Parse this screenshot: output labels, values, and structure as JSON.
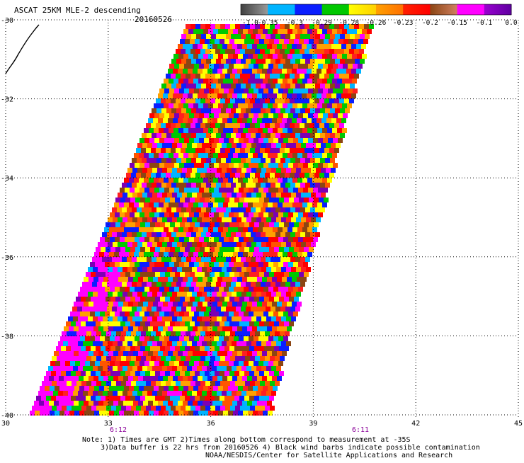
{
  "header": {
    "title": "ASCAT 25KM MLE-2 descending",
    "date": "20160526"
  },
  "colorbar": {
    "labels": [
      "-1.0",
      "-0.35",
      "-0.3",
      "-0.29",
      "-0.28",
      "-0.26",
      "-0.23",
      "-0.2",
      "-0.15",
      "-0.1",
      "0.0"
    ],
    "colors": [
      "#404040",
      "#8c8c8c",
      "#00b4ff",
      "#0a1eff",
      "#00c800",
      "#ffff00",
      "#ffa000",
      "#ff0000",
      "#8b4513",
      "#ff00ff",
      "#7b00b4"
    ]
  },
  "axes": {
    "x_ticks": [
      "30",
      "33",
      "36",
      "39",
      "42",
      "45"
    ],
    "y_ticks": [
      "-30",
      "-32",
      "-34",
      "-36",
      "-38",
      "-40"
    ],
    "xlim": [
      30,
      45
    ],
    "ylim": [
      -40,
      -30
    ]
  },
  "time_labels": [
    "6:12",
    "6:11"
  ],
  "notes": {
    "line1": "Note: 1) Times are GMT 2)Times along bottom correspond to measurement at -35S",
    "line2": "3)Data buffer is 22 hrs from 20160526 4) Black wind barbs indicate possible contamination",
    "line3": "NOAA/NESDIS/Center for Satellite Applications and Research"
  },
  "pixel_palette": [
    "#ff0000",
    "#ff2020",
    "#ffa000",
    "#ffff00",
    "#00c800",
    "#0a1eff",
    "#00b4ff",
    "#ff00ff",
    "#7b00b4",
    "#8b4513",
    "#ff5500"
  ]
}
